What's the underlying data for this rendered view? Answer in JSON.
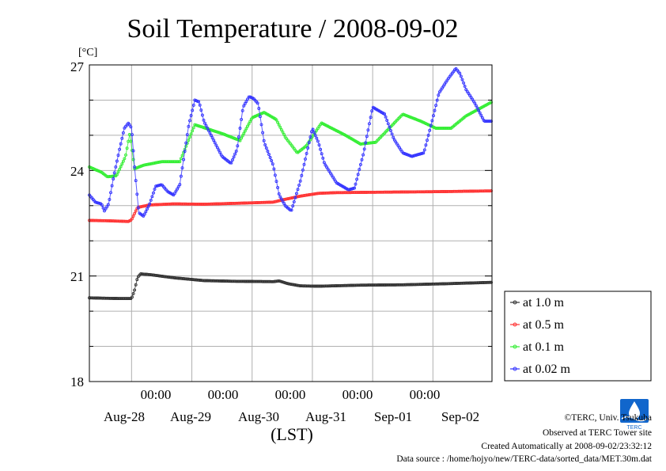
{
  "chart_data": {
    "type": "line",
    "title": "Soil Temperature / 2008-09-02",
    "ylabel": "[°C]",
    "xlabel": "(LST)",
    "ylim": [
      18,
      27
    ],
    "y_ticks": [
      "18",
      "21",
      "24",
      "27"
    ],
    "x_unit": "days since Aug-27 00:00 LST",
    "xlim": [
      0.3,
      6.98
    ],
    "x_ticks": [
      {
        "time": "00:00",
        "date": "Aug-28"
      },
      {
        "time": "00:00",
        "date": "Aug-29"
      },
      {
        "time": "00:00",
        "date": "Aug-30"
      },
      {
        "time": "00:00",
        "date": "Aug-31"
      },
      {
        "time": "00:00",
        "date": "Sep-01"
      },
      {
        "time": "00:00",
        "date": "Sep-02"
      }
    ],
    "grid": true,
    "legend_position": "right",
    "series": [
      {
        "name": "at 1.0 m",
        "color": "#333333",
        "x": [
          0.3,
          0.5,
          0.8,
          1.0,
          1.05,
          1.1,
          1.15,
          1.3,
          1.7,
          2.2,
          2.7,
          3.35,
          3.45,
          3.6,
          3.8,
          4.1,
          4.8,
          5.5,
          6.2,
          6.98
        ],
        "y": [
          20.38,
          20.37,
          20.36,
          20.36,
          20.6,
          20.96,
          21.06,
          21.04,
          20.95,
          20.87,
          20.85,
          20.84,
          20.86,
          20.78,
          20.72,
          20.71,
          20.74,
          20.75,
          20.78,
          20.82
        ]
      },
      {
        "name": "at 0.5 m",
        "color": "#ff3333",
        "x": [
          0.3,
          0.6,
          0.95,
          1.0,
          1.1,
          1.3,
          1.7,
          2.2,
          2.8,
          3.35,
          3.55,
          3.8,
          4.1,
          4.4,
          5.0,
          5.6,
          6.2,
          6.98
        ],
        "y": [
          22.58,
          22.57,
          22.55,
          22.6,
          22.95,
          23.02,
          23.05,
          23.04,
          23.07,
          23.1,
          23.18,
          23.27,
          23.35,
          23.37,
          23.38,
          23.39,
          23.4,
          23.42
        ]
      },
      {
        "name": "at 0.1 m",
        "color": "#33ee33",
        "x": [
          0.3,
          0.5,
          0.6,
          0.75,
          0.9,
          0.97,
          1.05,
          1.2,
          1.5,
          1.8,
          2.05,
          2.5,
          2.8,
          3.0,
          3.2,
          3.4,
          3.55,
          3.75,
          3.9,
          4.15,
          4.55,
          4.8,
          5.05,
          5.5,
          5.8,
          6.05,
          6.3,
          6.55,
          6.98
        ],
        "y": [
          24.1,
          23.95,
          23.82,
          23.85,
          24.4,
          25.05,
          24.05,
          24.15,
          24.25,
          24.25,
          25.3,
          25.05,
          24.85,
          25.5,
          25.65,
          25.45,
          24.95,
          24.5,
          24.7,
          25.35,
          25.0,
          24.75,
          24.8,
          25.6,
          25.4,
          25.2,
          25.2,
          25.55,
          25.95
        ]
      },
      {
        "name": "at 0.02 m",
        "color": "#3333ff",
        "x": [
          0.3,
          0.4,
          0.5,
          0.55,
          0.62,
          0.7,
          0.8,
          0.88,
          0.95,
          1.0,
          1.05,
          1.12,
          1.2,
          1.3,
          1.4,
          1.5,
          1.6,
          1.7,
          1.8,
          1.95,
          2.05,
          2.12,
          2.2,
          2.35,
          2.5,
          2.65,
          2.75,
          2.85,
          2.95,
          3.02,
          3.1,
          3.2,
          3.35,
          3.45,
          3.55,
          3.65,
          3.8,
          4.0,
          4.1,
          4.2,
          4.4,
          4.6,
          4.7,
          4.85,
          5.0,
          5.2,
          5.35,
          5.5,
          5.65,
          5.85,
          6.0,
          6.1,
          6.25,
          6.38,
          6.45,
          6.55,
          6.7,
          6.85,
          6.98
        ],
        "y": [
          23.3,
          23.1,
          23.05,
          22.85,
          23.05,
          23.8,
          24.6,
          25.2,
          25.35,
          25.2,
          24.1,
          22.8,
          22.7,
          23.05,
          23.55,
          23.6,
          23.4,
          23.3,
          23.6,
          25.3,
          26.0,
          25.95,
          25.4,
          24.9,
          24.4,
          24.2,
          24.6,
          25.8,
          26.1,
          26.05,
          25.9,
          24.8,
          24.15,
          23.3,
          23.0,
          22.85,
          23.7,
          25.2,
          24.8,
          24.2,
          23.65,
          23.45,
          23.5,
          24.5,
          25.8,
          25.6,
          24.9,
          24.5,
          24.4,
          24.5,
          25.5,
          26.2,
          26.6,
          26.9,
          26.75,
          26.3,
          25.9,
          25.4,
          25.4
        ]
      }
    ]
  },
  "credits": {
    "copyright": "©TERC, Univ. Tsukuba",
    "observed": "Observed at TERC Tower site",
    "created": "Created Automatically at 2008-09-02/23:32:12",
    "source": "Data source : /home/hojyo/new/TERC-data/sorted_data/MET.30m.dat"
  },
  "logo": {
    "text": "TERC",
    "color": "#1166cc"
  }
}
